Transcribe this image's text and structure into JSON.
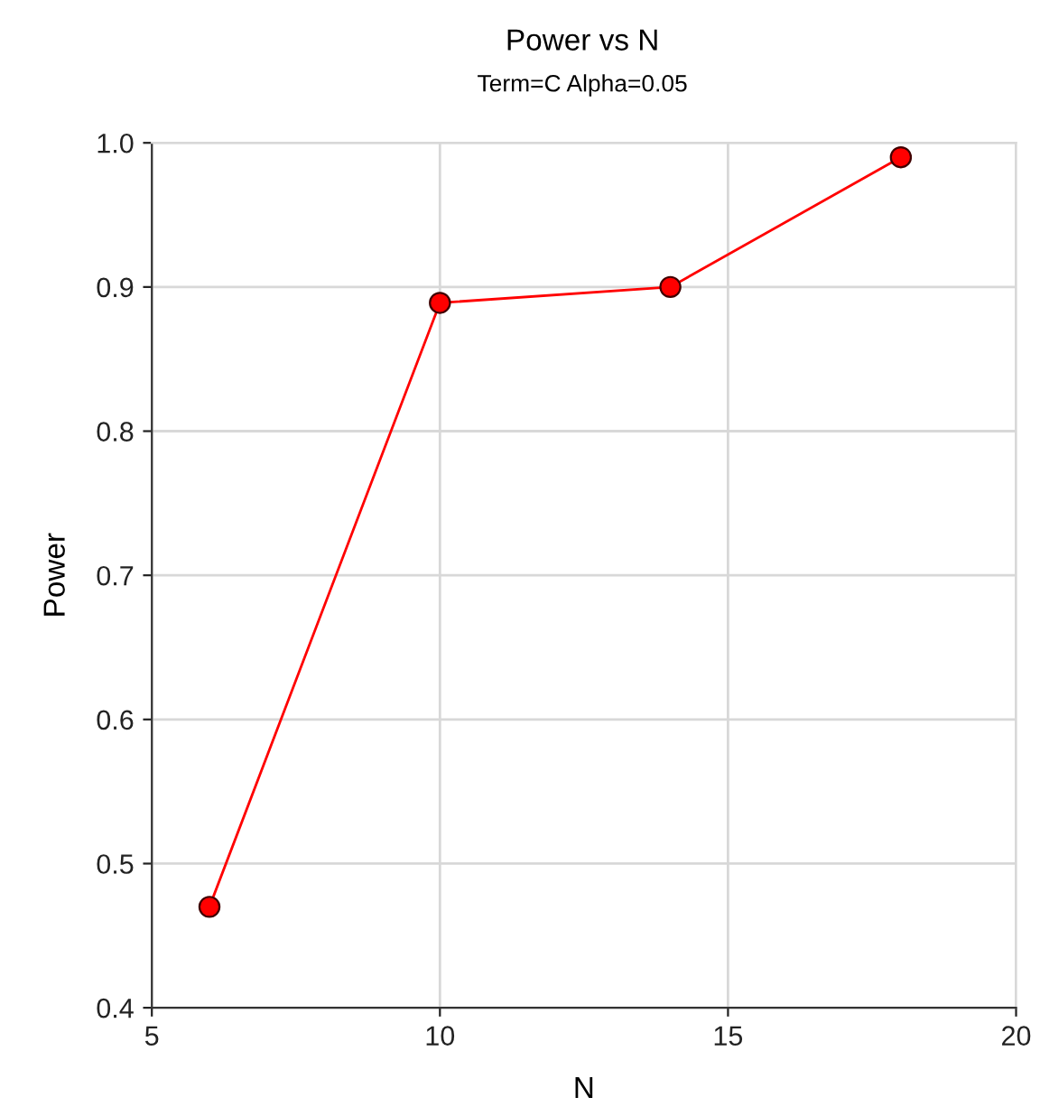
{
  "chart_data": {
    "type": "line",
    "title": "Power vs N",
    "subtitle": "Term=C Alpha=0.05",
    "xlabel": "N",
    "ylabel": "Power",
    "x": [
      6,
      10,
      14,
      18
    ],
    "series": [
      {
        "color": "#ff0000",
        "values": [
          0.47,
          0.889,
          0.9,
          0.99
        ]
      }
    ],
    "xlim": [
      5,
      20
    ],
    "xticks": [
      5,
      10,
      15,
      20
    ],
    "ylim": [
      0.4,
      1.0
    ],
    "yticks": [
      {
        "value": 0.4,
        "label": "0.4"
      },
      {
        "value": 0.5,
        "label": "0.5"
      },
      {
        "value": 0.6,
        "label": "0.6"
      },
      {
        "value": 0.7,
        "label": "0.7"
      },
      {
        "value": 0.8,
        "label": "0.8"
      },
      {
        "value": 0.9,
        "label": "0.9"
      },
      {
        "value": 1.0,
        "label": "1.0"
      }
    ],
    "grid": true,
    "marker": "circle",
    "line_style": "solid"
  }
}
